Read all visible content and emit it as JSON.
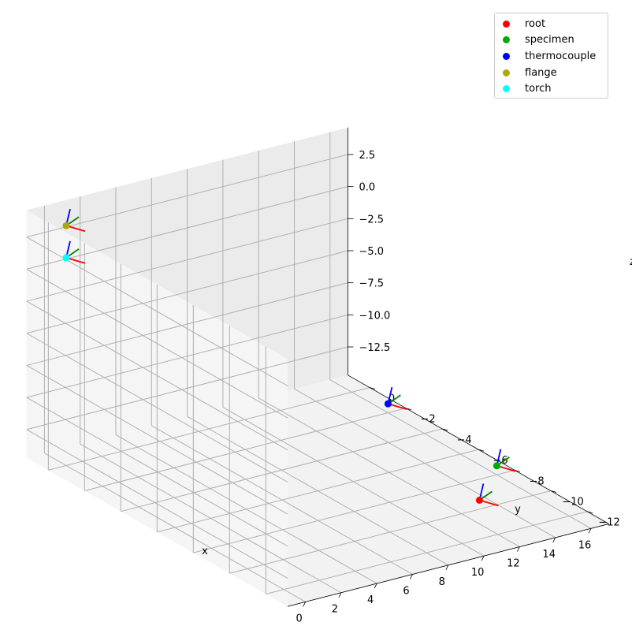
{
  "chart_data": {
    "type": "scatter",
    "projection": "3d",
    "xlabel": "x",
    "ylabel": "y",
    "zlabel": "z",
    "xlim": [
      -1,
      17
    ],
    "ylim": [
      -13.2,
      1.2
    ],
    "zlim": [
      -14.7,
      4.6
    ],
    "x_ticks": [
      "0",
      "2",
      "4",
      "6",
      "8",
      "10",
      "12",
      "14",
      "16"
    ],
    "y_ticks": [
      "0",
      "−2",
      "−4",
      "−6",
      "−8",
      "−10",
      "−12"
    ],
    "z_ticks": [
      "2.5",
      "0.0",
      "−2.5",
      "−5.0",
      "−7.5",
      "−10.0",
      "−12.5"
    ],
    "grid": true,
    "legend_position": "top-right",
    "frame_axes_colors": {
      "x": "#ff0000",
      "y": "#008000",
      "z": "#0000ff"
    },
    "series": [
      {
        "name": "root",
        "color": "#ff0000",
        "x": 13,
        "y": -10,
        "z": -14
      },
      {
        "name": "specimen",
        "color": "#00aa00",
        "x": 16,
        "y": -8,
        "z": -14
      },
      {
        "name": "thermocouple",
        "color": "#0000ff",
        "x": 16,
        "y": -2,
        "z": -14
      },
      {
        "name": "flange",
        "color": "#aaaa00",
        "x": 0,
        "y": 0,
        "z": 4
      },
      {
        "name": "torch",
        "color": "#00ffff",
        "x": 0,
        "y": 0,
        "z": 1.5
      }
    ]
  }
}
